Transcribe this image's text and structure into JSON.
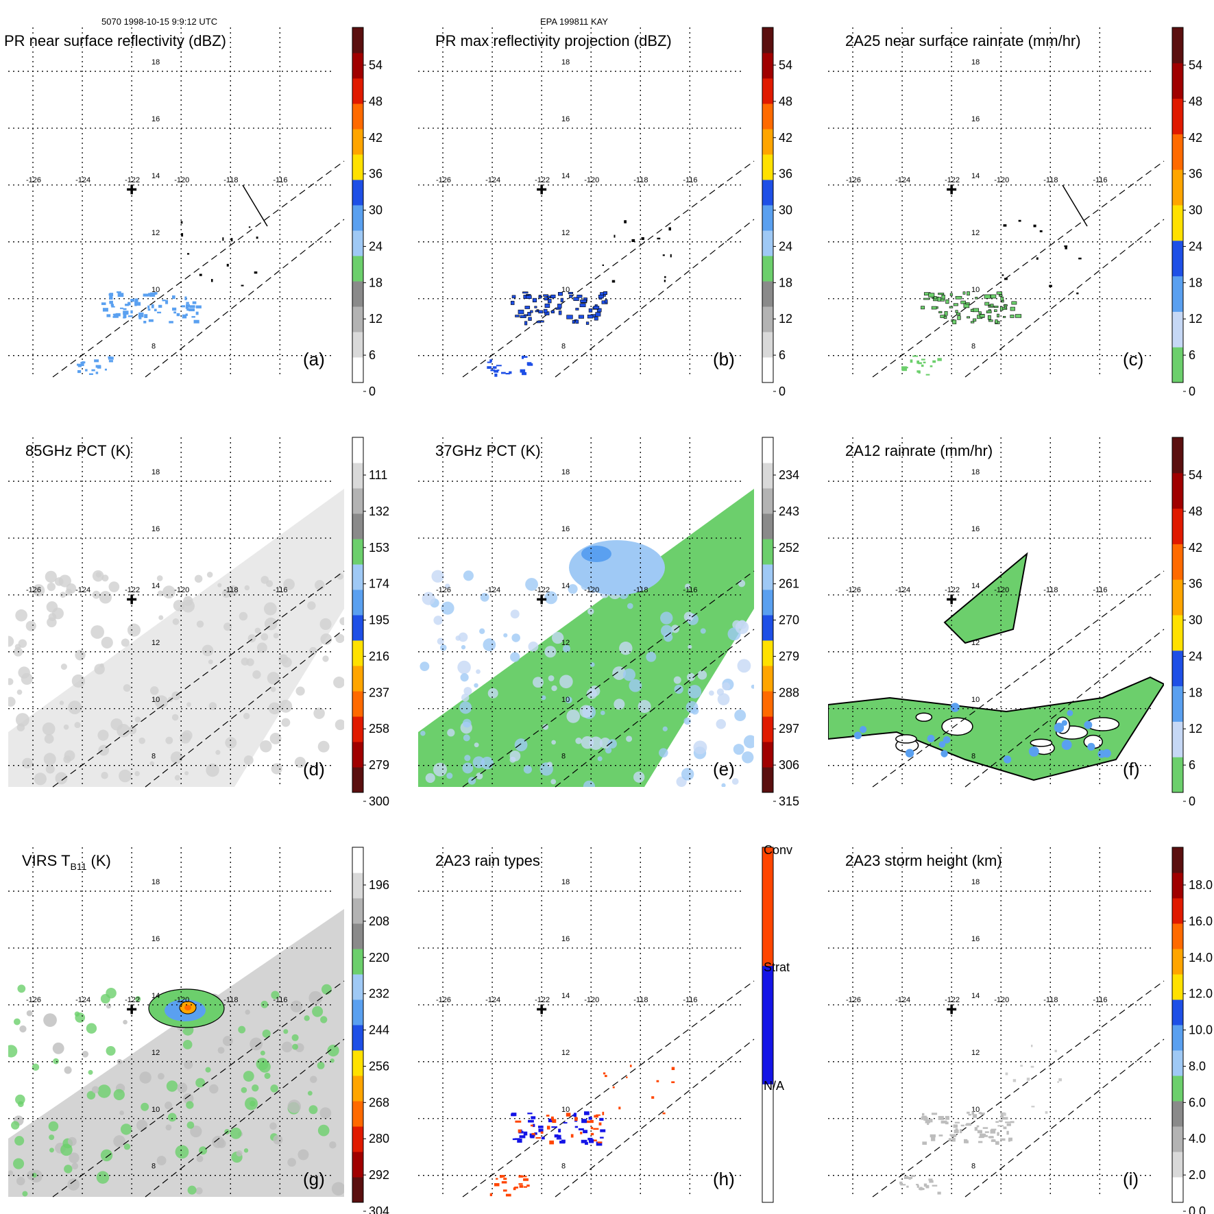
{
  "header": {
    "left": "5070 1998-10-15 9:9:12 UTC",
    "center": "EPA 199811 KAY"
  },
  "chart_data": {
    "type": "heatmap",
    "grid": true,
    "lon_labels": [
      "-126",
      "-124",
      "-122",
      "-120",
      "-118",
      "-116"
    ],
    "lat_labels": [
      "18",
      "16",
      "14",
      "12",
      "10",
      "8"
    ],
    "center_marker": {
      "lon": -122,
      "lat": 13.7
    },
    "panels": [
      {
        "id": "a",
        "title": "PR near surface reflectivity (dBZ)",
        "label": "(a)",
        "colorbar": "dbz",
        "ticks": [
          "54",
          "48",
          "42",
          "36",
          "30",
          "24",
          "18",
          "12",
          "6",
          "0"
        ],
        "swath": "pr",
        "cross_section": true
      },
      {
        "id": "b",
        "title": "PR max reflectivity projection (dBZ)",
        "label": "(b)",
        "colorbar": "dbz",
        "ticks": [
          "54",
          "48",
          "42",
          "36",
          "30",
          "24",
          "18",
          "12",
          "6",
          "0"
        ],
        "swath": "pr",
        "cross_section": false
      },
      {
        "id": "c",
        "title": "2A25 near surface rainrate (mm/hr)",
        "label": "(c)",
        "colorbar": "rain",
        "ticks": [
          "54",
          "48",
          "42",
          "36",
          "30",
          "24",
          "18",
          "12",
          "6",
          "0"
        ],
        "swath": "pr",
        "cross_section": true
      },
      {
        "id": "d",
        "title": "85GHz PCT (K)",
        "label": "(d)",
        "colorbar": "pct",
        "ticks": [
          "111",
          "132",
          "153",
          "174",
          "195",
          "216",
          "237",
          "258",
          "279",
          "300"
        ],
        "swath": "tmi",
        "cross_section": false
      },
      {
        "id": "e",
        "title": "37GHz PCT (K)",
        "label": "(e)",
        "colorbar": "pct",
        "ticks": [
          "234",
          "243",
          "252",
          "261",
          "270",
          "279",
          "288",
          "297",
          "306",
          "315"
        ],
        "swath": "tmi",
        "cross_section": false
      },
      {
        "id": "f",
        "title": "2A12 rainrate (mm/hr)",
        "label": "(f)",
        "colorbar": "rain",
        "ticks": [
          "54",
          "48",
          "42",
          "36",
          "30",
          "24",
          "18",
          "12",
          "6",
          "0"
        ],
        "swath": "none",
        "cross_section": false
      },
      {
        "id": "g",
        "title_main": "VIRS T",
        "title_sub": "B11",
        "title_tail": " (K)",
        "label": "(g)",
        "colorbar": "pct",
        "ticks": [
          "196",
          "208",
          "220",
          "232",
          "244",
          "256",
          "268",
          "280",
          "292",
          "304"
        ],
        "swath": "virs",
        "cross_section": false
      },
      {
        "id": "h",
        "title": "2A23 rain types",
        "label": "(h)",
        "colorbar": "raintype",
        "ticks": [
          "Conv",
          "Strat",
          "N/A"
        ],
        "swath": "pr",
        "cross_section": false
      },
      {
        "id": "i",
        "title": "2A23 storm height (km)",
        "label": "(i)",
        "colorbar": "height",
        "ticks": [
          "18.0",
          "16.0",
          "14.0",
          "12.0",
          "10.0",
          "8.0",
          "6.0",
          "4.0",
          "2.0",
          "0.0"
        ],
        "swath": "pr",
        "cross_section": false
      }
    ],
    "colormaps": {
      "dbz": [
        "#ffffff",
        "#d9d9d9",
        "#b3b3b3",
        "#8a8a8a",
        "#6ccf6c",
        "#9fc9f5",
        "#5aa0f0",
        "#1e4fe6",
        "#ffe100",
        "#ffa500",
        "#ff6a00",
        "#e01a00",
        "#a00000",
        "#5a0f0f"
      ],
      "rain": [
        "#6ccf6c",
        "#c6d8f5",
        "#5aa0f0",
        "#1e4fe6",
        "#ffe100",
        "#ffa500",
        "#ff6a00",
        "#e01a00",
        "#a00000",
        "#5a0f0f"
      ],
      "pct": [
        "#5a0f0f",
        "#a00000",
        "#e01a00",
        "#ff6a00",
        "#ffa500",
        "#ffe100",
        "#1e4fe6",
        "#5aa0f0",
        "#9fc9f5",
        "#6ccf6c",
        "#8a8a8a",
        "#b3b3b3",
        "#d9d9d9",
        "#ffffff"
      ],
      "height": [
        "#ffffff",
        "#d9d9d9",
        "#b3b3b3",
        "#8a8a8a",
        "#6ccf6c",
        "#9fc9f5",
        "#5aa0f0",
        "#1e4fe6",
        "#ffe100",
        "#ffa500",
        "#ff6a00",
        "#e01a00",
        "#a00000",
        "#5a0f0f"
      ],
      "raintype": [
        "#ffffff",
        "#1414e6",
        "#ff4500"
      ]
    }
  }
}
